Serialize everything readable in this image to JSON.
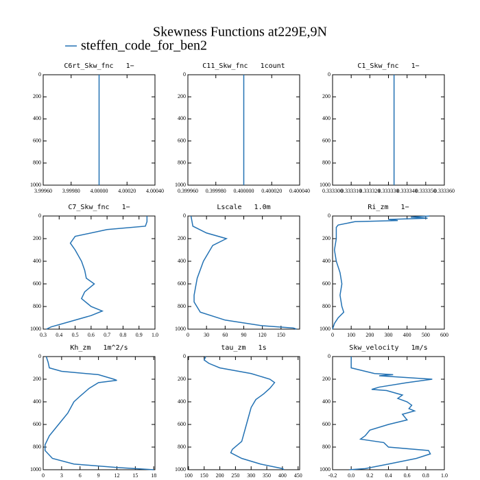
{
  "title": "Skewness Functions at229E,9N",
  "series_name": "steffen_code_for_ben2",
  "color": "#2271b3",
  "chart_data": [
    {
      "type": "line",
      "title": "C6rt_Skw_fnc   1−",
      "invert_y": true,
      "y": [
        0,
        1000
      ],
      "values": [
        4.0,
        4.0
      ],
      "xlim": [
        3.9996,
        4.0004
      ],
      "xticks": [
        {
          "value": 3.9996,
          "label": "3.99960"
        },
        {
          "value": 3.9998,
          "label": "3.99980"
        },
        {
          "value": 4.0,
          "label": "4.00000"
        },
        {
          "value": 4.0002,
          "label": "4.00020"
        },
        {
          "value": 4.0004,
          "label": "4.00040"
        }
      ],
      "ylim": [
        0,
        1000
      ],
      "yticks": [
        0,
        200,
        400,
        600,
        800,
        1000
      ]
    },
    {
      "type": "line",
      "title": "C11_Skw_fnc   1count",
      "invert_y": true,
      "y": [
        0,
        1000
      ],
      "values": [
        0.4,
        0.4
      ],
      "xlim": [
        0.39996,
        0.40004
      ],
      "xticks": [
        {
          "value": 0.39996,
          "label": "0.399960"
        },
        {
          "value": 0.39998,
          "label": "0.399980"
        },
        {
          "value": 0.4,
          "label": "0.400000"
        },
        {
          "value": 0.40002,
          "label": "0.400020"
        },
        {
          "value": 0.40004,
          "label": "0.400040"
        }
      ],
      "ylim": [
        0,
        1000
      ],
      "yticks": [
        0,
        200,
        400,
        600,
        800,
        1000
      ]
    },
    {
      "type": "line",
      "title": "C1_Skw_fnc   1−",
      "invert_y": true,
      "y": [
        0,
        1000
      ],
      "values": [
        0.333333,
        0.333333
      ],
      "xlim": [
        0.3333,
        0.33336
      ],
      "xticks": [
        {
          "value": 0.3333,
          "label": "0.333300"
        },
        {
          "value": 0.33331,
          "label": "0.333310"
        },
        {
          "value": 0.33332,
          "label": "0.333320"
        },
        {
          "value": 0.33333,
          "label": "0.333330"
        },
        {
          "value": 0.33334,
          "label": "0.333340"
        },
        {
          "value": 0.33335,
          "label": "0.333350"
        },
        {
          "value": 0.33336,
          "label": "0.333360"
        }
      ],
      "ylim": [
        0,
        1000
      ],
      "yticks": [
        0,
        200,
        400,
        600,
        800,
        1000
      ]
    },
    {
      "type": "line",
      "title": "C7_Skw_fnc   1−",
      "invert_y": true,
      "y": [
        0,
        50,
        90,
        120,
        180,
        240,
        300,
        400,
        480,
        550,
        600,
        670,
        730,
        800,
        840,
        880,
        940,
        980,
        1000
      ],
      "values": [
        0.95,
        0.95,
        0.94,
        0.7,
        0.5,
        0.47,
        0.5,
        0.54,
        0.56,
        0.57,
        0.62,
        0.56,
        0.54,
        0.6,
        0.67,
        0.6,
        0.45,
        0.35,
        0.32
      ],
      "xlim": [
        0.3,
        1.0
      ],
      "xticks": [
        {
          "value": 0.3,
          "label": "0.3"
        },
        {
          "value": 0.4,
          "label": "0.4"
        },
        {
          "value": 0.5,
          "label": "0.5"
        },
        {
          "value": 0.6,
          "label": "0.6"
        },
        {
          "value": 0.7,
          "label": "0.7"
        },
        {
          "value": 0.8,
          "label": "0.8"
        },
        {
          "value": 0.9,
          "label": "0.9"
        },
        {
          "value": 1,
          "label": "1.0"
        }
      ],
      "ylim": [
        0,
        1000
      ],
      "yticks": [
        0,
        200,
        400,
        600,
        800,
        1000
      ]
    },
    {
      "type": "line",
      "title": "Lscale   1.0m",
      "invert_y": true,
      "y": [
        0,
        90,
        150,
        200,
        260,
        400,
        550,
        700,
        760,
        850,
        920,
        970,
        990,
        1000
      ],
      "values": [
        5,
        8,
        30,
        62,
        40,
        25,
        15,
        10,
        10,
        20,
        60,
        120,
        170,
        175
      ],
      "xlim": [
        0,
        180
      ],
      "xticks": [
        0,
        30,
        60,
        90,
        120,
        150
      ],
      "ylim": [
        0,
        1000
      ],
      "yticks": [
        0,
        200,
        400,
        600,
        800,
        1000
      ]
    },
    {
      "type": "line",
      "title": "Ri_zm   1−",
      "invert_y": true,
      "y": [
        0,
        10,
        20,
        30,
        40,
        50,
        80,
        100,
        200,
        300,
        400,
        500,
        600,
        700,
        800,
        850,
        900,
        950,
        1000
      ],
      "values": [
        520,
        420,
        510,
        300,
        350,
        120,
        30,
        20,
        20,
        10,
        20,
        40,
        50,
        40,
        50,
        60,
        30,
        10,
        0
      ],
      "xlim": [
        0,
        600
      ],
      "xticks": [
        0,
        100,
        200,
        300,
        400,
        500,
        600
      ],
      "ylim": [
        0,
        1000
      ],
      "yticks": [
        0,
        200,
        400,
        600,
        800,
        1000
      ]
    },
    {
      "type": "line",
      "title": "Kh_zm   1m^2/s",
      "invert_y": true,
      "y": [
        0,
        50,
        100,
        130,
        160,
        200,
        210,
        230,
        280,
        350,
        400,
        500,
        600,
        700,
        780,
        830,
        900,
        950,
        980,
        1000
      ],
      "values": [
        0.5,
        0.8,
        1,
        3,
        9,
        11.5,
        12,
        9,
        7.5,
        6,
        5,
        4,
        2.5,
        1,
        0.3,
        0.3,
        1.5,
        5,
        12,
        18
      ],
      "xlim": [
        0,
        18.2
      ],
      "xticks": [
        0,
        3,
        6,
        9,
        12,
        15,
        18
      ],
      "ylim": [
        0,
        1000
      ],
      "yticks": [
        0,
        200,
        400,
        600,
        800,
        1000
      ]
    },
    {
      "type": "line",
      "title": "tau_zm   1s",
      "invert_y": true,
      "y": [
        0,
        30,
        60,
        100,
        150,
        200,
        230,
        280,
        330,
        380,
        450,
        550,
        650,
        750,
        820,
        850,
        900,
        950,
        990,
        1000
      ],
      "values": [
        155,
        150,
        165,
        200,
        300,
        360,
        375,
        360,
        340,
        315,
        300,
        290,
        280,
        270,
        240,
        235,
        270,
        330,
        400,
        405
      ],
      "xlim": [
        98,
        455
      ],
      "xticks": [
        100,
        150,
        200,
        250,
        300,
        350,
        400,
        450
      ],
      "ylim": [
        0,
        1000
      ],
      "yticks": [
        0,
        200,
        400,
        600,
        800,
        1000
      ]
    },
    {
      "type": "line",
      "title": "Skw_velocity   1m/s",
      "invert_y": true,
      "y": [
        0,
        100,
        150,
        160,
        170,
        200,
        230,
        270,
        290,
        300,
        340,
        370,
        400,
        430,
        460,
        480,
        510,
        560,
        600,
        650,
        700,
        730,
        760,
        800,
        830,
        860,
        900,
        950,
        990,
        1000
      ],
      "values": [
        0.0,
        0.0,
        0.25,
        0.45,
        0.3,
        0.87,
        0.6,
        0.3,
        0.22,
        0.38,
        0.55,
        0.5,
        0.6,
        0.65,
        0.62,
        0.68,
        0.55,
        0.6,
        0.4,
        0.2,
        0.15,
        0.1,
        0.35,
        0.4,
        0.83,
        0.85,
        0.7,
        0.4,
        0.15,
        -0.02
      ],
      "xlim": [
        -0.2,
        1.0
      ],
      "xticks": [
        -0.2,
        {
          "value": 0,
          "label": "0.0"
        },
        0.2,
        0.4,
        0.6,
        0.8,
        {
          "value": 1,
          "label": "1.0"
        }
      ],
      "ylim": [
        0,
        1000
      ],
      "yticks": [
        0,
        200,
        400,
        600,
        800,
        1000
      ]
    }
  ]
}
